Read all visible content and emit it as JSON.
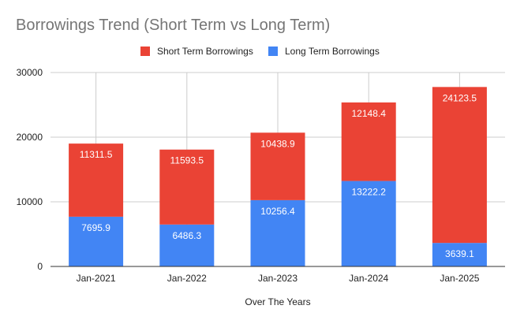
{
  "chart_data": {
    "type": "bar",
    "stacked": true,
    "title": "Borrowings Trend (Short Term vs Long Term)",
    "xlabel": "Over The Years",
    "ylabel": "",
    "categories": [
      "Jan-2021",
      "Jan-2022",
      "Jan-2023",
      "Jan-2024",
      "Jan-2025"
    ],
    "series": [
      {
        "name": "Long Term Borrowings",
        "color": "#4285f4",
        "values": [
          7695.9,
          6486.3,
          10256.4,
          13222.2,
          3639.1
        ],
        "labels": [
          "7695.9",
          "6486.3",
          "10256.4",
          "13222.2",
          "3639.1"
        ]
      },
      {
        "name": "Short Term Borrowings",
        "color": "#ea4335",
        "values": [
          11311.5,
          11593.5,
          10438.9,
          12148.4,
          24123.5
        ],
        "labels": [
          "11311.5",
          "11593.5",
          "10438.9",
          "12148.4",
          "24123.5"
        ]
      }
    ],
    "legend_order": [
      1,
      0
    ],
    "legend_position": "top",
    "ylim": [
      0,
      30000
    ],
    "yticks": [
      0,
      10000,
      20000,
      30000
    ],
    "ytick_labels": [
      "0",
      "10000",
      "20000",
      "30000"
    ],
    "grid": true
  }
}
